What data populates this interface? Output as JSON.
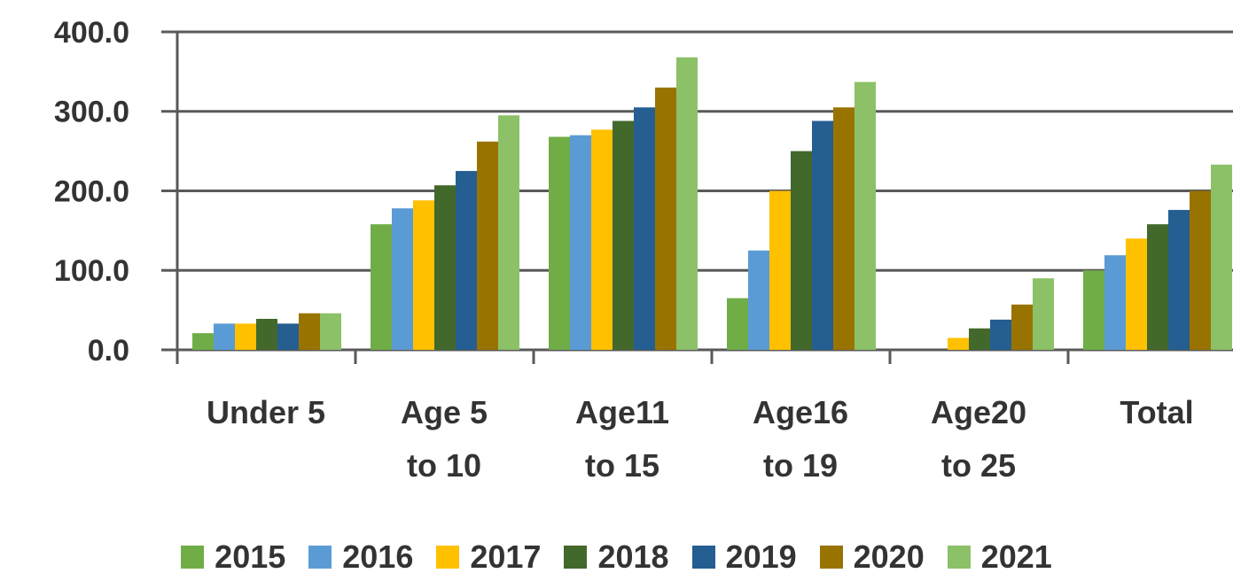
{
  "chart_data": {
    "type": "bar",
    "categories": [
      "Under 5",
      "Age 5\nto 10",
      "Age11\nto 15",
      "Age16\nto 19",
      "Age20\nto 25",
      "Total"
    ],
    "series": [
      {
        "name": "2015",
        "color": "#70ad47",
        "values": [
          21,
          158,
          268,
          65,
          0,
          100
        ]
      },
      {
        "name": "2016",
        "color": "#5b9bd5",
        "values": [
          33,
          178,
          270,
          125,
          0,
          119
        ]
      },
      {
        "name": "2017",
        "color": "#ffc000",
        "values": [
          33,
          188,
          277,
          200,
          15,
          140
        ]
      },
      {
        "name": "2018",
        "color": "#43682b",
        "values": [
          39,
          207,
          288,
          250,
          27,
          158
        ]
      },
      {
        "name": "2019",
        "color": "#255e91",
        "values": [
          33,
          225,
          305,
          288,
          38,
          176
        ]
      },
      {
        "name": "2020",
        "color": "#997300",
        "values": [
          46,
          262,
          330,
          305,
          57,
          200
        ]
      },
      {
        "name": "2021",
        "color": "#8cc168",
        "values": [
          46,
          295,
          368,
          337,
          90,
          233
        ]
      }
    ],
    "ylim": [
      0,
      400
    ],
    "yticks": [
      {
        "value": 0,
        "label": "0.0"
      },
      {
        "value": 100,
        "label": "100.0"
      },
      {
        "value": 200,
        "label": "200.0"
      },
      {
        "value": 300,
        "label": "300.0"
      },
      {
        "value": 400,
        "label": "400.0"
      }
    ],
    "grid": true
  }
}
